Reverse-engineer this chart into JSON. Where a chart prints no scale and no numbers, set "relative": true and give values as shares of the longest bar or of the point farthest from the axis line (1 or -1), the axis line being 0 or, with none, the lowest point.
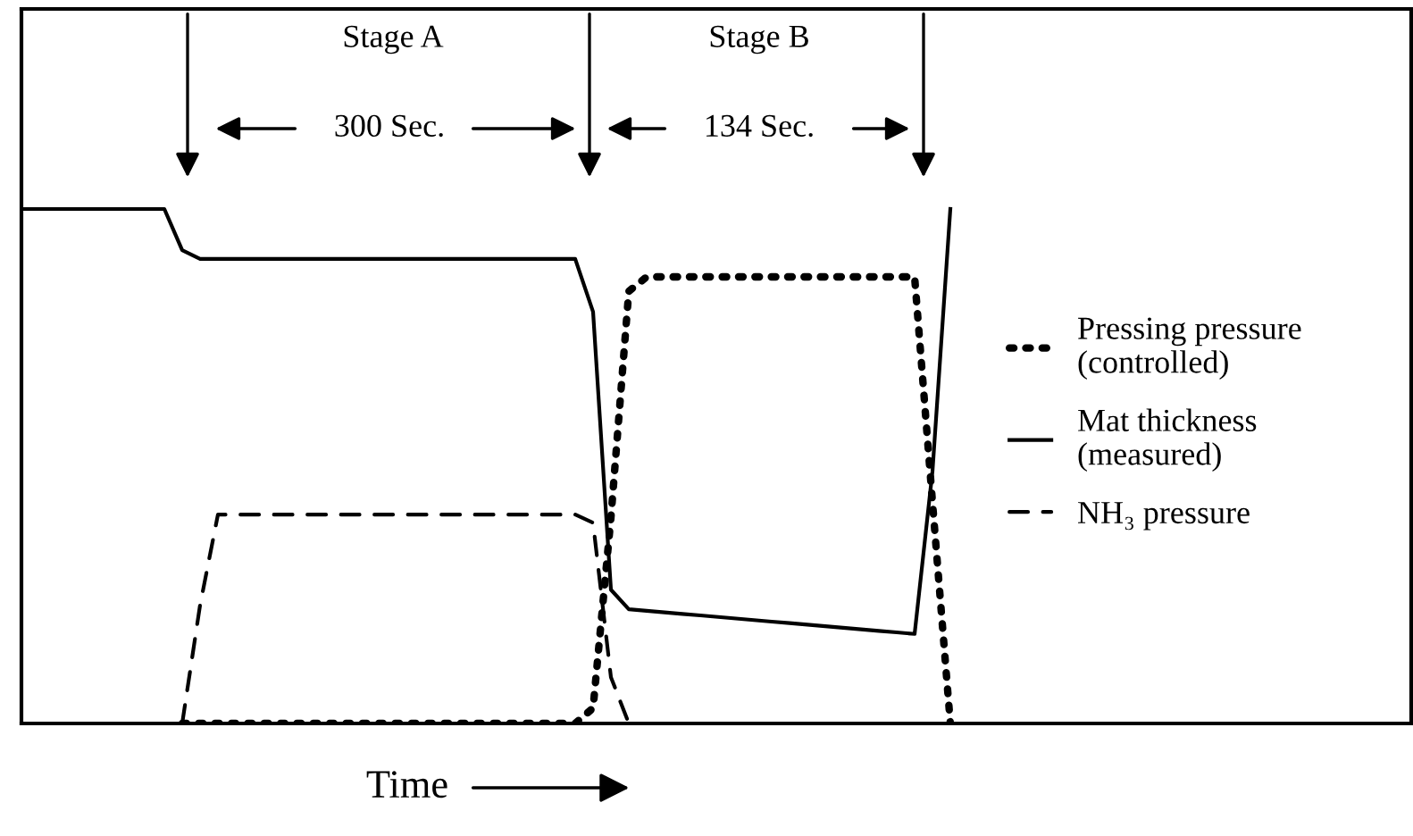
{
  "chart_data": {
    "type": "line",
    "relative": true,
    "xlabel": "Time",
    "grid": false,
    "legend": "right",
    "annotations": [
      "Stage A",
      "300 Sec.",
      "Stage B",
      "134 Sec."
    ],
    "categories": [
      null,
      null,
      null,
      null,
      null,
      null,
      null,
      null,
      null,
      null,
      null,
      null,
      null,
      null,
      null,
      null,
      null,
      null,
      null,
      null,
      null,
      null,
      null,
      null,
      null,
      null,
      null,
      null,
      null,
      null,
      null,
      null,
      null,
      null,
      null,
      null,
      null,
      null,
      null,
      null,
      null,
      null,
      null,
      null,
      null,
      null,
      null,
      null,
      null,
      null,
      null,
      null,
      null,
      null,
      null,
      null,
      null,
      null,
      null,
      null,
      null,
      null,
      null,
      null,
      null,
      null,
      null,
      null,
      null,
      null,
      null,
      null,
      null,
      null,
      null,
      null,
      null,
      null
    ],
    "series": [
      {
        "name": "Pressing pressure\n(controlled)",
        "color": "#000000",
        "line_style": "dotted",
        "values": [
          null,
          null,
          null,
          null,
          null,
          null,
          null,
          null,
          null,
          0,
          0,
          0,
          0,
          0,
          0,
          0,
          0,
          0,
          0,
          0,
          0,
          0,
          0,
          0,
          0,
          0,
          0,
          0,
          0,
          0,
          0,
          0,
          0.03,
          0.4,
          0.84,
          0.868,
          0.868,
          0.868,
          0.868,
          0.868,
          0.868,
          0.868,
          0.868,
          0.868,
          0.868,
          0.868,
          0.868,
          0.868,
          0.868,
          0.868,
          0.868,
          0.43,
          0,
          null,
          null,
          null,
          null,
          null,
          null,
          null,
          null,
          null,
          null,
          null,
          null,
          null,
          null,
          null,
          null,
          null,
          null,
          null,
          null,
          null,
          null,
          null,
          null,
          null
        ]
      },
      {
        "name": "Mat thickness\n(measured)",
        "color": "#000000",
        "line_style": "solid",
        "values": [
          1.0,
          1.0,
          1.0,
          1.0,
          1.0,
          1.0,
          1.0,
          1.0,
          1.0,
          0.92,
          0.903,
          0.903,
          0.903,
          0.903,
          0.903,
          0.903,
          0.903,
          0.903,
          0.903,
          0.903,
          0.903,
          0.903,
          0.903,
          0.903,
          0.903,
          0.903,
          0.903,
          0.903,
          0.903,
          0.903,
          0.903,
          0.903,
          0.8,
          0.26,
          0.222,
          0.219,
          0.216,
          0.213,
          0.21,
          0.207,
          0.204,
          0.201,
          0.198,
          0.195,
          0.192,
          0.189,
          0.186,
          0.183,
          0.18,
          0.177,
          0.174,
          0.49,
          1.0,
          null,
          null,
          null,
          null,
          null,
          null,
          null,
          null,
          null,
          null,
          null,
          null,
          null,
          null,
          null,
          null,
          null,
          null,
          null,
          null,
          null,
          null,
          null,
          null,
          null
        ]
      },
      {
        "name": "NH₃ pressure",
        "color": "#000000",
        "line_style": "dashed",
        "values": [
          null,
          null,
          null,
          null,
          null,
          null,
          null,
          null,
          null,
          0,
          0.23,
          0.406,
          0.406,
          0.406,
          0.406,
          0.406,
          0.406,
          0.406,
          0.406,
          0.406,
          0.406,
          0.406,
          0.406,
          0.406,
          0.406,
          0.406,
          0.406,
          0.406,
          0.406,
          0.406,
          0.406,
          0.406,
          0.39,
          0.09,
          0,
          null,
          null,
          null,
          null,
          null,
          null,
          null,
          null,
          null,
          null,
          null,
          null,
          null,
          null,
          null,
          null,
          null,
          null,
          null,
          null,
          null,
          null,
          null,
          null,
          null,
          null,
          null,
          null,
          null,
          null,
          null,
          null,
          null,
          null,
          null,
          null,
          null,
          null,
          null,
          null,
          null,
          null,
          null
        ]
      }
    ]
  }
}
